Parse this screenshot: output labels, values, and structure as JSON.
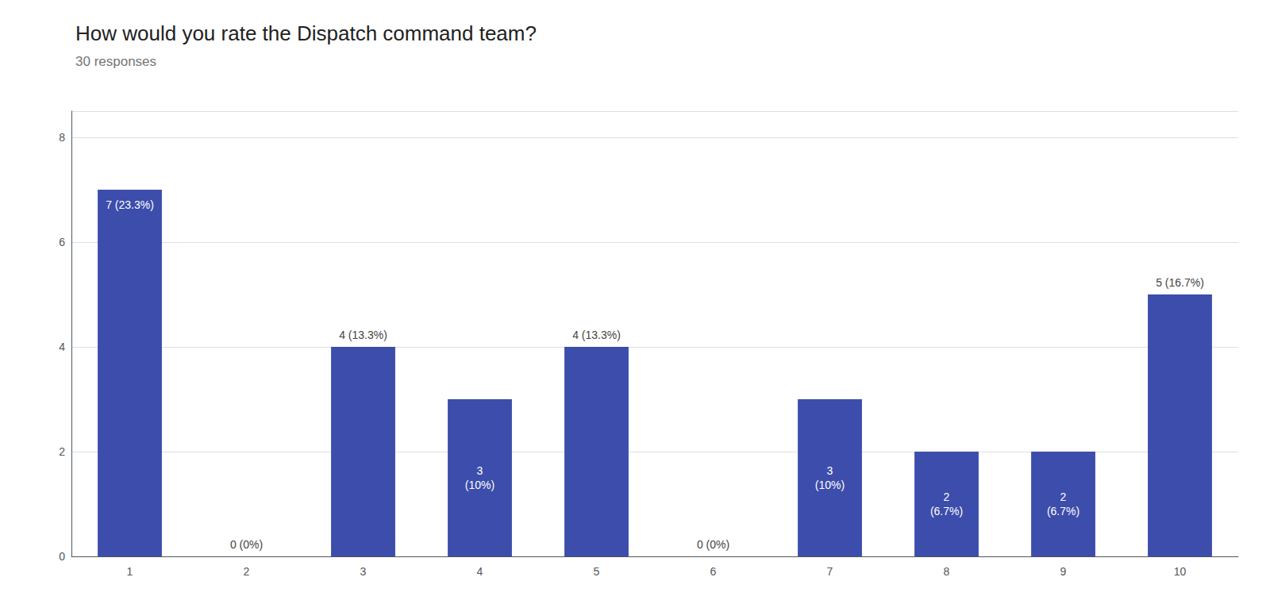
{
  "chart_data": {
    "type": "bar",
    "title": "How would you rate the Dispatch command team?",
    "subtitle": "30 responses",
    "categories": [
      "1",
      "2",
      "3",
      "4",
      "5",
      "6",
      "7",
      "8",
      "9",
      "10"
    ],
    "values": [
      7,
      0,
      4,
      3,
      4,
      0,
      3,
      2,
      2,
      5
    ],
    "value_labels": [
      "7 (23.3%)",
      "0 (0%)",
      "4 (13.3%)",
      "3\n(10%)",
      "4 (13.3%)",
      "0 (0%)",
      "3\n(10%)",
      "2\n(6.7%)",
      "2\n(6.7%)",
      "5 (16.7%)"
    ],
    "data_labels": true,
    "color": "#3d4dab",
    "ylim": [
      0,
      8.5
    ],
    "yticks": [
      0,
      2,
      4,
      6,
      8
    ],
    "grid": true
  }
}
